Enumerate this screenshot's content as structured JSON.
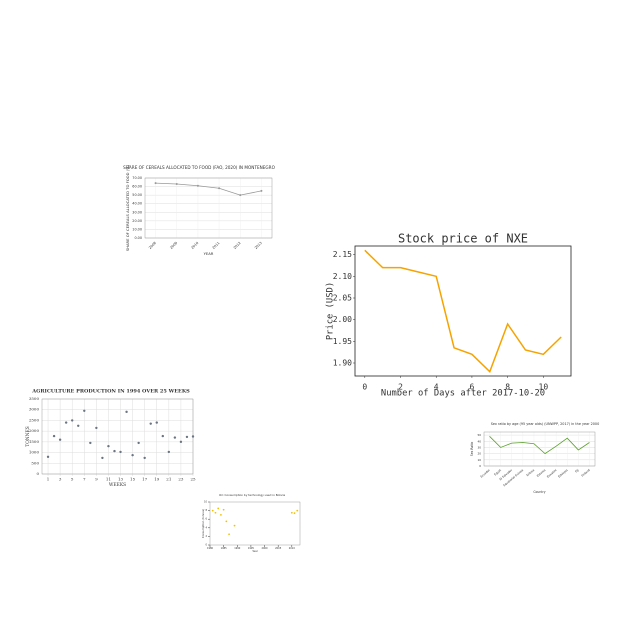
{
  "chart_data": [
    {
      "type": "line",
      "title": "SHARE OF CEREALS ALLOCATED TO FOOD (FAO, 2020) IN MONTENEGRO",
      "x_label": "YEAR",
      "y_label": "SHARE OF CEREALS ALLOCATED TO FOOD (%)",
      "categories": [
        "2008",
        "2009",
        "2010",
        "2011",
        "2012",
        "2013"
      ],
      "values": [
        64,
        63,
        61,
        58,
        50,
        55
      ],
      "color": "#999999",
      "ylim": [
        0,
        70
      ],
      "yticks": [
        {
          "value": 0,
          "label": "0.00"
        },
        {
          "value": 10,
          "label": "10.00"
        },
        {
          "value": 20,
          "label": "20.00"
        },
        {
          "value": 30,
          "label": "30.00"
        },
        {
          "value": 40,
          "label": "40.00"
        },
        {
          "value": 50,
          "label": "50.00"
        },
        {
          "value": 60,
          "label": "60.00"
        },
        {
          "value": 70,
          "label": "70.00"
        }
      ],
      "grid": true
    },
    {
      "type": "line",
      "title": "Stock price of NXE",
      "x_label": "Number of Days after 2017-10-20",
      "y_label": "Price (USD)",
      "x": [
        0,
        1,
        2,
        3,
        4,
        5,
        6,
        7,
        8,
        9,
        10,
        11
      ],
      "values": [
        2.16,
        2.12,
        2.12,
        2.11,
        2.1,
        1.935,
        1.92,
        1.88,
        1.99,
        1.93,
        1.92,
        1.96
      ],
      "color": "#f5a300",
      "xlim": [
        -0.55,
        11.55
      ],
      "ylim": [
        1.87,
        2.17
      ],
      "xticks": [
        0,
        2,
        4,
        6,
        8,
        10
      ],
      "yticks": [
        {
          "value": 1.9,
          "label": "1.90"
        },
        {
          "value": 1.95,
          "label": "1.95"
        },
        {
          "value": 2,
          "label": "2.00"
        },
        {
          "value": 2.05,
          "label": "2.05"
        },
        {
          "value": 2.1,
          "label": "2.10"
        },
        {
          "value": 2.15,
          "label": "2.15"
        }
      ],
      "grid": false
    },
    {
      "type": "scatter",
      "title": "AGRICULTURE PRODUCTION IN 1994 OVER 25 WEEKS",
      "x_label": "WEEKS",
      "y_label": "TONNES",
      "x": [
        1,
        2,
        3,
        4,
        5,
        6,
        7,
        8,
        9,
        10,
        11,
        12,
        13,
        14,
        15,
        16,
        17,
        18,
        19,
        20,
        21,
        22,
        23,
        24,
        25
      ],
      "values": [
        800,
        1770,
        1600,
        2400,
        2500,
        2250,
        2950,
        1450,
        2150,
        750,
        1300,
        1070,
        1030,
        2900,
        880,
        1450,
        750,
        2350,
        2400,
        1770,
        1030,
        1700,
        1500,
        1730,
        1750
      ],
      "color": "#6b7480",
      "xlim": [
        0,
        25
      ],
      "ylim": [
        0,
        3500
      ],
      "xticks": [
        1,
        3,
        5,
        7,
        9,
        11,
        13,
        15,
        17,
        19,
        21,
        23,
        25
      ],
      "yticks": [
        0,
        500,
        1000,
        1500,
        2000,
        2500,
        3000,
        3500
      ],
      "grid": true
    },
    {
      "type": "line",
      "title": "Sex ratio by age (95 year olds) (UNWPP, 2017) in the year 2000",
      "x_label": "Country",
      "y_label": "Sex Ratio",
      "categories": [
        "Ecuador",
        "Egypt",
        "El Salvador",
        "Equatorial Guinea",
        "Eritrea",
        "Estonia",
        "Eswatini",
        "Ethiopia",
        "Fiji",
        "Finland"
      ],
      "values": [
        48,
        30,
        37,
        38,
        36,
        20,
        32,
        45,
        26,
        38
      ],
      "color": "#5aa02c",
      "ylim": [
        0,
        55
      ],
      "yticks": [
        0,
        10,
        20,
        30,
        40,
        50
      ],
      "grid": true
    },
    {
      "type": "scatter",
      "title": "Oil: Consumption by technology used in Bolivia",
      "x_label": "Year",
      "y_label": "Consumption (tonnes)",
      "x": [
        1981,
        1982,
        1983,
        1984,
        1985,
        1986,
        1987,
        1989,
        2010,
        2011,
        2012
      ],
      "values": [
        8,
        7.5,
        8.5,
        7,
        8.2,
        5.5,
        2.5,
        4.5,
        7.5,
        7.4,
        8
      ],
      "color": "#f2c200",
      "xlim": [
        1980,
        2013
      ],
      "ylim": [
        0,
        10
      ],
      "xticks": [
        1980,
        1985,
        1990,
        1995,
        2000,
        2005,
        2010
      ],
      "yticks": [
        0,
        2,
        4,
        6,
        8,
        10
      ],
      "grid": false
    }
  ]
}
